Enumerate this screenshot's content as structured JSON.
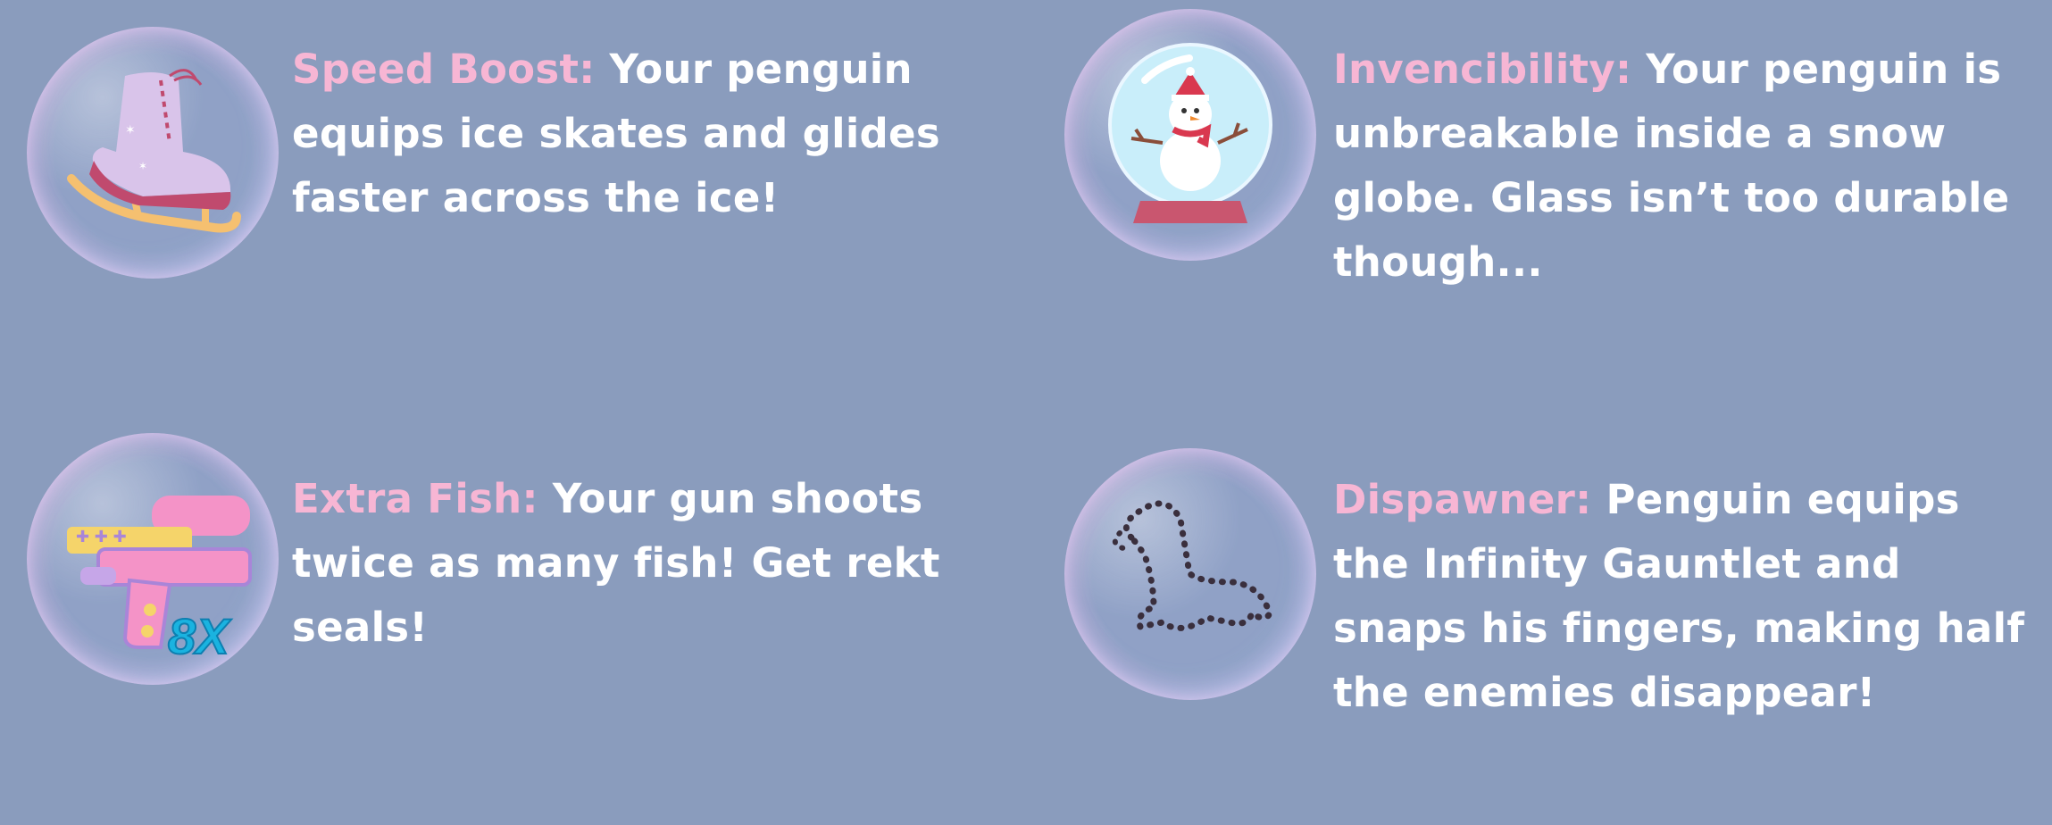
{
  "powerups": [
    {
      "title": "Speed Boost:",
      "text": "Your penguin equips ice skates and glides faster across the ice!",
      "icon": "ice-skate-icon"
    },
    {
      "title": "Invencibility:",
      "text": "Your penguin is unbreakable inside a snow globe. Glass isn’t too durable though...",
      "icon": "snow-globe-icon"
    },
    {
      "title": "Extra Fish:",
      "text": "Your gun shoots twice as many fish! Get rekt seals!",
      "icon": "water-gun-icon",
      "badge": "8X"
    },
    {
      "title": "Dispawner:",
      "text": "Penguin equips the Infinity Gauntlet and snaps his fingers, making half the enemies disappear!",
      "icon": "dotted-seal-icon"
    }
  ],
  "colors": {
    "background": "#8a9cbd",
    "title": "#f7b6d4",
    "text": "#ffffff"
  }
}
